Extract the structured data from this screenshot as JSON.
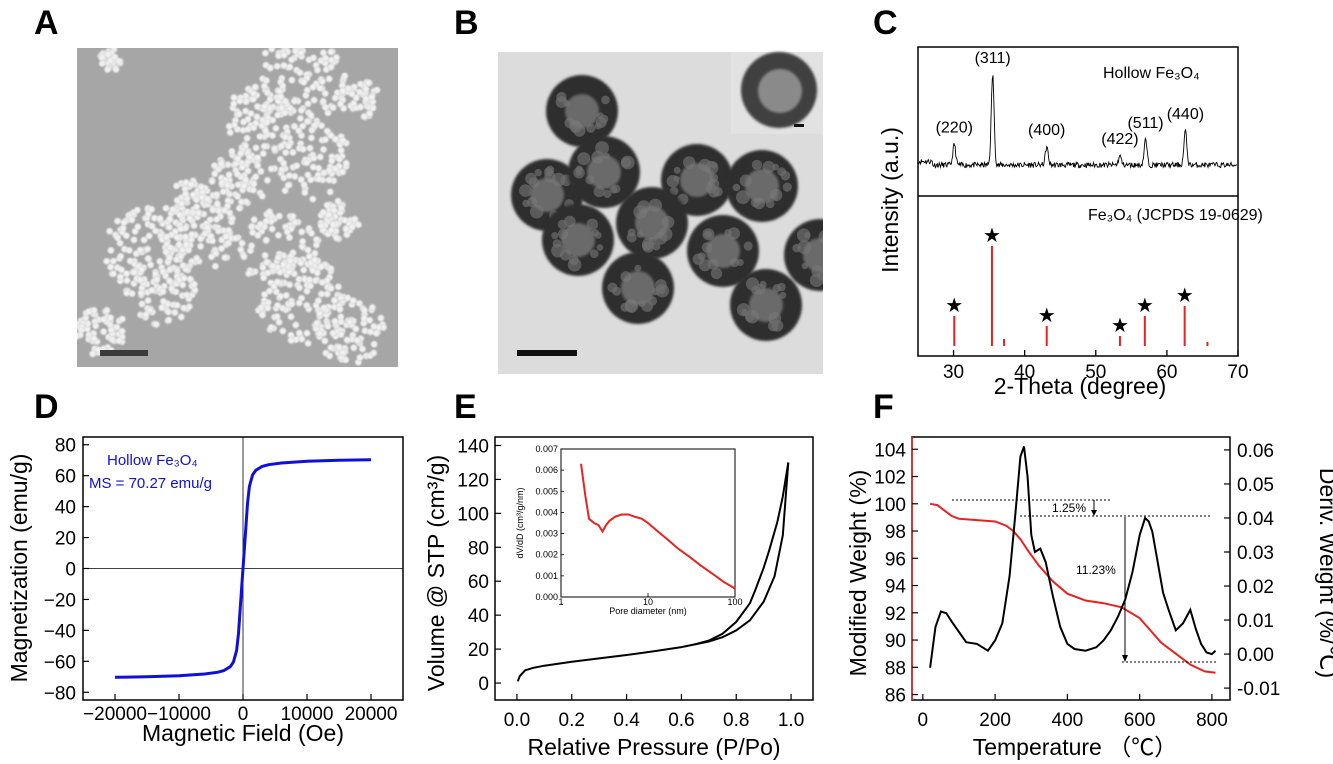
{
  "panels": {
    "a": {
      "label": "A"
    },
    "b": {
      "label": "B"
    },
    "c": {
      "label": "C"
    },
    "d": {
      "label": "D"
    },
    "e": {
      "label": "E"
    },
    "f": {
      "label": "F"
    }
  },
  "colors": {
    "series_red": "#e8231f",
    "series_blue": "#1010d8",
    "black": "#000000"
  },
  "chart_data": [
    {
      "panel": "C",
      "type": "line",
      "xlabel": "2-Theta (degree)",
      "ylabel": "Intensity (a.u.)",
      "xlim": [
        25,
        70
      ],
      "xticks": [
        30,
        40,
        50,
        60,
        70
      ],
      "top_label": "Hollow Fe₃O₄",
      "peaks": [
        {
          "label": "(220)",
          "x": 30.1,
          "h": 0.23
        },
        {
          "label": "(311)",
          "x": 35.5,
          "h": 1.0
        },
        {
          "label": "(400)",
          "x": 43.1,
          "h": 0.2
        },
        {
          "label": "(422)",
          "x": 53.4,
          "h": 0.1
        },
        {
          "label": "(511)",
          "x": 57.0,
          "h": 0.28
        },
        {
          "label": "(440)",
          "x": 62.6,
          "h": 0.38
        }
      ],
      "reference_label": "Fe₃O₄ (JCPDS 19-0629)",
      "reference_lines": [
        {
          "x": 30.1,
          "h": 0.3,
          "star": true
        },
        {
          "x": 35.4,
          "h": 1.0,
          "star": true
        },
        {
          "x": 37.1,
          "h": 0.07,
          "star": false
        },
        {
          "x": 43.1,
          "h": 0.2,
          "star": true
        },
        {
          "x": 53.4,
          "h": 0.1,
          "star": true
        },
        {
          "x": 56.9,
          "h": 0.3,
          "star": true
        },
        {
          "x": 62.5,
          "h": 0.4,
          "star": true
        },
        {
          "x": 65.7,
          "h": 0.04,
          "star": false
        }
      ],
      "star_glyph": "★"
    },
    {
      "panel": "D",
      "type": "line",
      "xlabel": "Magnetic Field (Oe)",
      "ylabel": "Magnetization (emu/g)",
      "xlim": [
        -25000,
        25000
      ],
      "ylim": [
        -85,
        85
      ],
      "xticks": [
        -20000,
        -10000,
        0,
        10000,
        20000
      ],
      "yticks": [
        -80,
        -60,
        -40,
        -20,
        0,
        20,
        40,
        60,
        80
      ],
      "legend_title": "Hollow Fe₃O₄",
      "legend_ms": "MS = 70.27 emu/g",
      "series": [
        {
          "x": [
            -20000,
            -15000,
            -10000,
            -6000,
            -4000,
            -3000,
            -2000,
            -1500,
            -1000,
            -700,
            -400,
            -200,
            0,
            200,
            400,
            700,
            1000,
            1500,
            2000,
            3000,
            4000,
            6000,
            10000,
            15000,
            20000
          ],
          "y": [
            -70.3,
            -70.0,
            -69.3,
            -68.2,
            -67.1,
            -66.0,
            -63.5,
            -60.5,
            -53.0,
            -42.0,
            -24.0,
            -12.0,
            0,
            12.0,
            24.0,
            42.0,
            53.0,
            60.5,
            63.5,
            66.0,
            67.1,
            68.2,
            69.3,
            70.0,
            70.3
          ]
        }
      ]
    },
    {
      "panel": "E",
      "type": "line",
      "xlabel": "Relative Pressure (P/Po)",
      "ylabel": "Volume @ STP (cm³/g)",
      "xlim": [
        -0.08,
        1.08
      ],
      "ylim": [
        -10,
        145
      ],
      "xticks": [
        0.0,
        0.2,
        0.4,
        0.6,
        0.8,
        1.0
      ],
      "yticks": [
        0,
        20,
        40,
        60,
        80,
        100,
        120,
        140
      ],
      "series": [
        {
          "name": "",
          "x": [
            0.003,
            0.01,
            0.03,
            0.06,
            0.1,
            0.2,
            0.3,
            0.4,
            0.5,
            0.6,
            0.7,
            0.75,
            0.8,
            0.85,
            0.9,
            0.94,
            0.97,
            0.99
          ],
          "y": [
            1,
            4,
            7.5,
            9,
            10.2,
            12.5,
            14.5,
            16.5,
            18.7,
            21.2,
            24.5,
            27,
            31,
            37,
            48,
            63,
            87,
            130
          ]
        },
        {
          "name": "",
          "x": [
            0.99,
            0.97,
            0.95,
            0.92,
            0.9,
            0.87,
            0.85,
            0.8,
            0.75,
            0.7,
            0.65
          ],
          "y": [
            130,
            110,
            95,
            78,
            68,
            55,
            47,
            36,
            29,
            25,
            22.8
          ]
        }
      ],
      "inset": {
        "xlabel": "Pore diameter (nm)",
        "ylabel": "dV/dD (cm³/g/nm)",
        "xscale": "log",
        "xlim": [
          1,
          100
        ],
        "ylim": [
          0,
          0.007
        ],
        "xticks": [
          1,
          10,
          100
        ],
        "yticks": [
          "0.000",
          "0.001",
          "0.002",
          "0.003",
          "0.004",
          "0.005",
          "0.006",
          "0.007"
        ],
        "x": [
          1.7,
          1.9,
          2.1,
          2.4,
          2.7,
          3.0,
          3.3,
          3.6,
          4.2,
          5.0,
          6.0,
          7.0,
          8.5,
          10,
          13,
          17,
          22,
          30,
          40,
          55,
          75,
          100
        ],
        "y": [
          0.0063,
          0.0048,
          0.0037,
          0.0035,
          0.0034,
          0.0031,
          0.0034,
          0.0036,
          0.0038,
          0.0039,
          0.0039,
          0.0038,
          0.0037,
          0.0035,
          0.0031,
          0.0027,
          0.0023,
          0.0019,
          0.0015,
          0.0011,
          0.0007,
          0.0004
        ]
      }
    },
    {
      "panel": "F",
      "type": "line",
      "xlabel": "Temperature （℃）",
      "ylabel": "Modified Weight (%)",
      "ylabel_right": "Deriv. Weight (%/℃)",
      "xlim": [
        -30,
        850
      ],
      "ylim": [
        85.6,
        104.9
      ],
      "ylim_right": [
        -0.0135,
        0.0638
      ],
      "xticks": [
        0,
        200,
        400,
        600,
        800
      ],
      "yticks": [
        86,
        88,
        90,
        92,
        94,
        96,
        98,
        100,
        102,
        104
      ],
      "yticks_right": [
        "-0.01",
        "0.00",
        "0.01",
        "0.02",
        "0.03",
        "0.04",
        "0.05",
        "0.06"
      ],
      "yticks_right_values": [
        -0.01,
        0.0,
        0.01,
        0.02,
        0.03,
        0.04,
        0.05,
        0.06
      ],
      "annotations": [
        "1.25%",
        "11.23%"
      ],
      "series": [
        {
          "name": "",
          "x": [
            20,
            40,
            60,
            80,
            100,
            150,
            200,
            230,
            250,
            270,
            290,
            320,
            360,
            400,
            450,
            500,
            550,
            600,
            630,
            660,
            700,
            740,
            780,
            810
          ],
          "y": [
            100,
            99.9,
            99.5,
            99.1,
            98.9,
            98.8,
            98.7,
            98.4,
            98.0,
            97.4,
            96.6,
            95.5,
            94.3,
            93.4,
            92.9,
            92.7,
            92.4,
            91.6,
            90.7,
            89.8,
            89.0,
            88.2,
            87.7,
            87.6
          ]
        },
        {
          "name": "",
          "x": [
            20,
            35,
            50,
            65,
            80,
            100,
            120,
            150,
            180,
            200,
            220,
            240,
            255,
            270,
            280,
            290,
            300,
            310,
            325,
            340,
            360,
            380,
            400,
            420,
            450,
            480,
            500,
            520,
            540,
            560,
            580,
            600,
            615,
            625,
            635,
            650,
            665,
            680,
            700,
            720,
            740,
            755,
            770,
            785,
            800,
            810
          ],
          "y": [
            -0.004,
            0.008,
            0.0125,
            0.012,
            0.0095,
            0.0065,
            0.0035,
            0.003,
            0.001,
            0.004,
            0.009,
            0.023,
            0.04,
            0.058,
            0.061,
            0.052,
            0.035,
            0.03,
            0.031,
            0.027,
            0.017,
            0.008,
            0.003,
            0.0015,
            0.001,
            0.002,
            0.004,
            0.007,
            0.011,
            0.016,
            0.024,
            0.035,
            0.04,
            0.039,
            0.036,
            0.027,
            0.018,
            0.013,
            0.007,
            0.009,
            0.013,
            0.0075,
            0.003,
            0.0005,
            0.0,
            0.001
          ]
        }
      ]
    }
  ]
}
